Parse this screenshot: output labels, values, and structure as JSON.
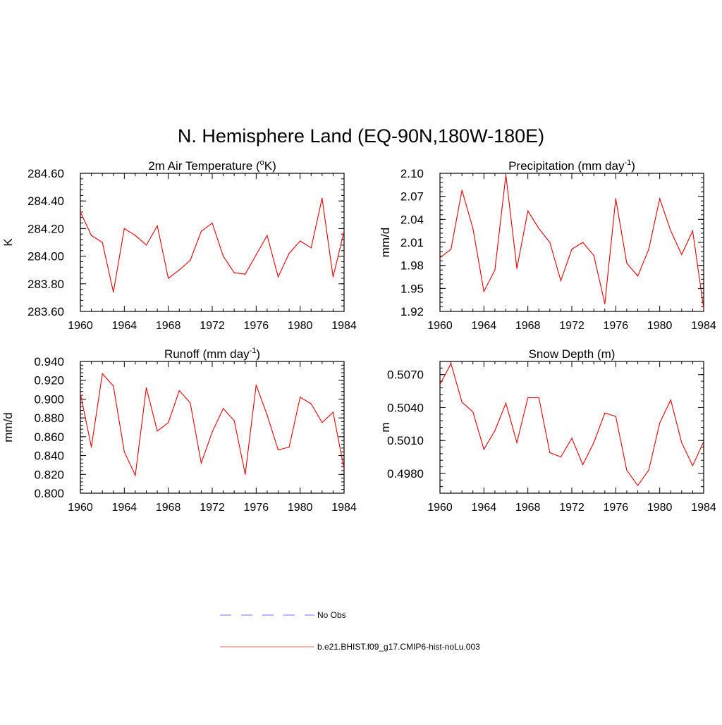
{
  "figure": {
    "title": "N. Hemisphere Land (EQ-90N,180W-180E)"
  },
  "legend": {
    "entries": [
      {
        "label": "No Obs",
        "color": "#8c8cff",
        "dashed": true
      },
      {
        "label": "b.e21.BHIST.f09_g17.CMIP6-hist-noLu.003",
        "color": "#ff8080",
        "dashed": false
      }
    ]
  },
  "chart_data": [
    {
      "type": "line",
      "title_main": "2m Air Temperature (",
      "title_sup": "o",
      "title_tail": "K)",
      "ylabel": "K",
      "xlim": [
        1960,
        1984
      ],
      "ylim": [
        283.6,
        284.6
      ],
      "xticks": [
        "1960",
        "1964",
        "1968",
        "1972",
        "1976",
        "1980",
        "1984"
      ],
      "yticks": [
        "283.60",
        "283.80",
        "284.00",
        "284.20",
        "284.40",
        "284.60"
      ],
      "line_color": "#e60000",
      "x": [
        1960,
        1961,
        1962,
        1963,
        1964,
        1965,
        1966,
        1967,
        1968,
        1969,
        1970,
        1971,
        1972,
        1973,
        1974,
        1975,
        1976,
        1977,
        1978,
        1979,
        1980,
        1981,
        1982,
        1983,
        1984
      ],
      "values": [
        284.32,
        284.15,
        284.1,
        283.74,
        284.2,
        284.15,
        284.08,
        284.22,
        283.84,
        283.9,
        283.97,
        284.18,
        284.24,
        284.0,
        283.88,
        283.87,
        284.01,
        284.15,
        283.85,
        284.02,
        284.11,
        284.06,
        284.42,
        283.85,
        284.18
      ]
    },
    {
      "type": "line",
      "title_main": "Precipitation (mm day",
      "title_sup": "-1",
      "title_tail": ")",
      "ylabel": "mm/d",
      "xlim": [
        1960,
        1984
      ],
      "ylim": [
        1.92,
        2.1
      ],
      "xticks": [
        "1960",
        "1964",
        "1968",
        "1972",
        "1976",
        "1980",
        "1984"
      ],
      "yticks": [
        "1.92",
        "1.95",
        "1.98",
        "2.01",
        "2.04",
        "2.07",
        "2.10"
      ],
      "line_color": "#e60000",
      "x": [
        1960,
        1961,
        1962,
        1963,
        1964,
        1965,
        1966,
        1967,
        1968,
        1969,
        1970,
        1971,
        1972,
        1973,
        1974,
        1975,
        1976,
        1977,
        1978,
        1979,
        1980,
        1981,
        1982,
        1983,
        1984
      ],
      "values": [
        1.99,
        2.001,
        2.078,
        2.028,
        1.946,
        1.974,
        2.098,
        1.976,
        2.051,
        2.028,
        2.01,
        1.96,
        2.001,
        2.01,
        1.993,
        1.93,
        2.067,
        1.983,
        1.966,
        2.001,
        2.067,
        2.025,
        1.994,
        2.025,
        1.924
      ]
    },
    {
      "type": "line",
      "title_main": "Runoff (mm day",
      "title_sup": "-1",
      "title_tail": ")",
      "ylabel": "mm/d",
      "xlim": [
        1960,
        1984
      ],
      "ylim": [
        0.8,
        0.94
      ],
      "xticks": [
        "1960",
        "1964",
        "1968",
        "1972",
        "1976",
        "1980",
        "1984"
      ],
      "yticks": [
        "0.800",
        "0.820",
        "0.840",
        "0.860",
        "0.880",
        "0.900",
        "0.920",
        "0.940"
      ],
      "line_color": "#e60000",
      "x": [
        1960,
        1961,
        1962,
        1963,
        1964,
        1965,
        1966,
        1967,
        1968,
        1969,
        1970,
        1971,
        1972,
        1973,
        1974,
        1975,
        1976,
        1977,
        1978,
        1979,
        1980,
        1981,
        1982,
        1983,
        1984
      ],
      "values": [
        0.906,
        0.849,
        0.927,
        0.914,
        0.844,
        0.819,
        0.912,
        0.866,
        0.875,
        0.909,
        0.896,
        0.832,
        0.865,
        0.89,
        0.877,
        0.82,
        0.915,
        0.883,
        0.846,
        0.849,
        0.902,
        0.895,
        0.875,
        0.886,
        0.826
      ]
    },
    {
      "type": "line",
      "title_main": "Snow Depth (m)",
      "title_sup": "",
      "title_tail": "",
      "ylabel": "m",
      "xlim": [
        1960,
        1984
      ],
      "ylim": [
        0.4962,
        0.5082
      ],
      "xticks": [
        "1960",
        "1964",
        "1968",
        "1972",
        "1976",
        "1980",
        "1984"
      ],
      "yticks": [
        "0.4980",
        "0.5010",
        "0.5040",
        "0.5070"
      ],
      "ytick_values": [
        0.498,
        0.501,
        0.504,
        0.507
      ],
      "line_color": "#e60000",
      "x": [
        1960,
        1961,
        1962,
        1963,
        1964,
        1965,
        1966,
        1967,
        1968,
        1969,
        1970,
        1971,
        1972,
        1973,
        1974,
        1975,
        1976,
        1977,
        1978,
        1979,
        1980,
        1981,
        1982,
        1983,
        1984
      ],
      "values": [
        0.5061,
        0.508,
        0.5045,
        0.5036,
        0.5002,
        0.5019,
        0.5044,
        0.5008,
        0.5049,
        0.5049,
        0.4999,
        0.4995,
        0.5012,
        0.4988,
        0.5008,
        0.5035,
        0.5032,
        0.4983,
        0.4969,
        0.4983,
        0.5026,
        0.5047,
        0.5008,
        0.4987,
        0.5009
      ]
    }
  ]
}
